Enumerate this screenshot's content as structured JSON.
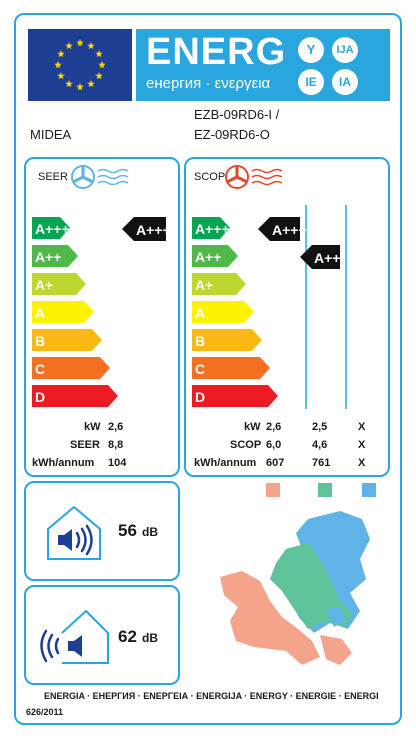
{
  "header": {
    "energy_word": "ENERG",
    "energy_sub": "енергия · ενεργεια",
    "lang_codes": [
      "Y",
      "IJA",
      "IE",
      "IA"
    ]
  },
  "supplier": {
    "name": "MIDEA",
    "model_line1": "EZB-09RD6-I /",
    "model_line2": "EZ-09RD6-O"
  },
  "cooling": {
    "title": "SEER",
    "class_arrow": "A+++",
    "scale": [
      {
        "label": "A+++",
        "color": "#00a651"
      },
      {
        "label": "A++",
        "color": "#50b848"
      },
      {
        "label": "A+",
        "color": "#bed62f"
      },
      {
        "label": "A",
        "color": "#fff200"
      },
      {
        "label": "B",
        "color": "#fdb913"
      },
      {
        "label": "C",
        "color": "#f37021"
      },
      {
        "label": "D",
        "color": "#ed1c24"
      }
    ],
    "rows": [
      {
        "key": "kW",
        "value": "2,6"
      },
      {
        "key": "SEER",
        "value": "8,8"
      },
      {
        "key": "kWh/annum",
        "value": "104"
      }
    ]
  },
  "heating": {
    "title": "SCOP",
    "class_arrow_1": "A+++",
    "class_arrow_2": "A++",
    "scale": [
      {
        "label": "A+++",
        "color": "#00a651"
      },
      {
        "label": "A++",
        "color": "#50b848"
      },
      {
        "label": "A+",
        "color": "#bed62f"
      },
      {
        "label": "A",
        "color": "#fff200"
      },
      {
        "label": "B",
        "color": "#fdb913"
      },
      {
        "label": "C",
        "color": "#f37021"
      },
      {
        "label": "D",
        "color": "#ed1c24"
      }
    ],
    "rows": [
      {
        "key": "kW",
        "v1": "2,6",
        "v2": "2,5",
        "v3": "X"
      },
      {
        "key": "SCOP",
        "v1": "6,0",
        "v2": "4,6",
        "v3": "X"
      },
      {
        "key": "kWh/annum",
        "v1": "607",
        "v2": "761",
        "v3": "X"
      }
    ],
    "zone_colors": [
      "#f4a48a",
      "#5fc39a",
      "#5fb3e6"
    ]
  },
  "noise": {
    "indoor": "56",
    "outdoor": "62",
    "unit": "dB"
  },
  "footer": {
    "languages": "ENERGIA · ЕНЕРГИЯ · ΕΝΕΡΓΕΙΑ · ENERGIJA · ENERGY · ENERGIE · ENERGI",
    "regulation": "626/2011"
  }
}
